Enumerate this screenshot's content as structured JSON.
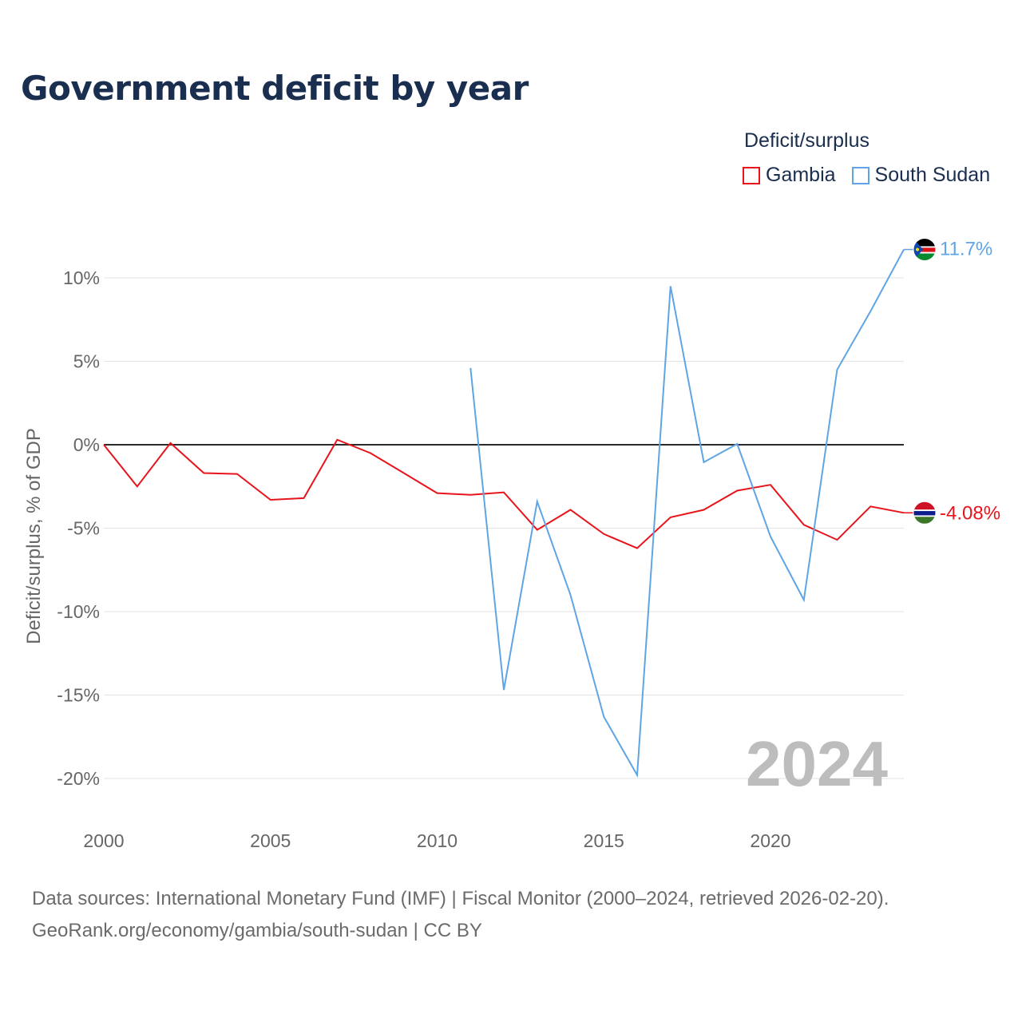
{
  "title": "Government deficit by year",
  "legend": {
    "title": "Deficit/surplus",
    "items": [
      {
        "label": "Gambia",
        "color": "#e8141b"
      },
      {
        "label": "South Sudan",
        "color": "#5fa5e6"
      }
    ]
  },
  "chart_data": {
    "type": "line",
    "ylabel": "Deficit/surplus, % of GDP",
    "xlabel": "",
    "xlim": [
      2000,
      2024
    ],
    "ylim": [
      -22,
      12
    ],
    "x_ticks": [
      2000,
      2005,
      2010,
      2015,
      2020
    ],
    "x_tick_labels": [
      "2000",
      "2005",
      "2010",
      "2015",
      "2020"
    ],
    "y_ticks": [
      10,
      5,
      0,
      -5,
      -10,
      -15,
      -20
    ],
    "y_tick_labels": [
      "10%",
      "5%",
      "0%",
      "-5%",
      "-10%",
      "-15%",
      "-20%"
    ],
    "year_watermark": "2024",
    "series": [
      {
        "name": "Gambia",
        "color": "#e8141b",
        "x": [
          2000,
          2001,
          2002,
          2003,
          2004,
          2005,
          2006,
          2007,
          2008,
          2009,
          2010,
          2011,
          2012,
          2013,
          2014,
          2015,
          2016,
          2017,
          2018,
          2019,
          2020,
          2021,
          2022,
          2023,
          2024
        ],
        "values": [
          0.0,
          -2.5,
          0.1,
          -1.7,
          -1.75,
          -3.3,
          -3.2,
          0.3,
          -0.5,
          -1.7,
          -2.9,
          -3.0,
          -2.85,
          -5.1,
          -3.9,
          -5.35,
          -6.2,
          -4.35,
          -3.9,
          -2.75,
          -2.4,
          -4.8,
          -5.7,
          -3.7,
          -4.08
        ],
        "end_label": "-4.08%"
      },
      {
        "name": "South Sudan",
        "color": "#5fa5e6",
        "x": [
          2011,
          2012,
          2013,
          2014,
          2015,
          2016,
          2017,
          2018,
          2019,
          2020,
          2021,
          2022,
          2023,
          2024
        ],
        "values": [
          4.6,
          -14.7,
          -3.4,
          -9.0,
          -16.3,
          -19.8,
          9.5,
          -1.05,
          0.05,
          -5.5,
          -9.3,
          4.5,
          8.0,
          11.7
        ],
        "end_label": "11.7%"
      }
    ]
  },
  "sources": {
    "line1": "Data sources: International Monetary Fund (IMF) | Fiscal Monitor (2000–2024, retrieved 2026-02-20).",
    "line2": "GeoRank.org/economy/gambia/south-sudan | CC BY"
  }
}
